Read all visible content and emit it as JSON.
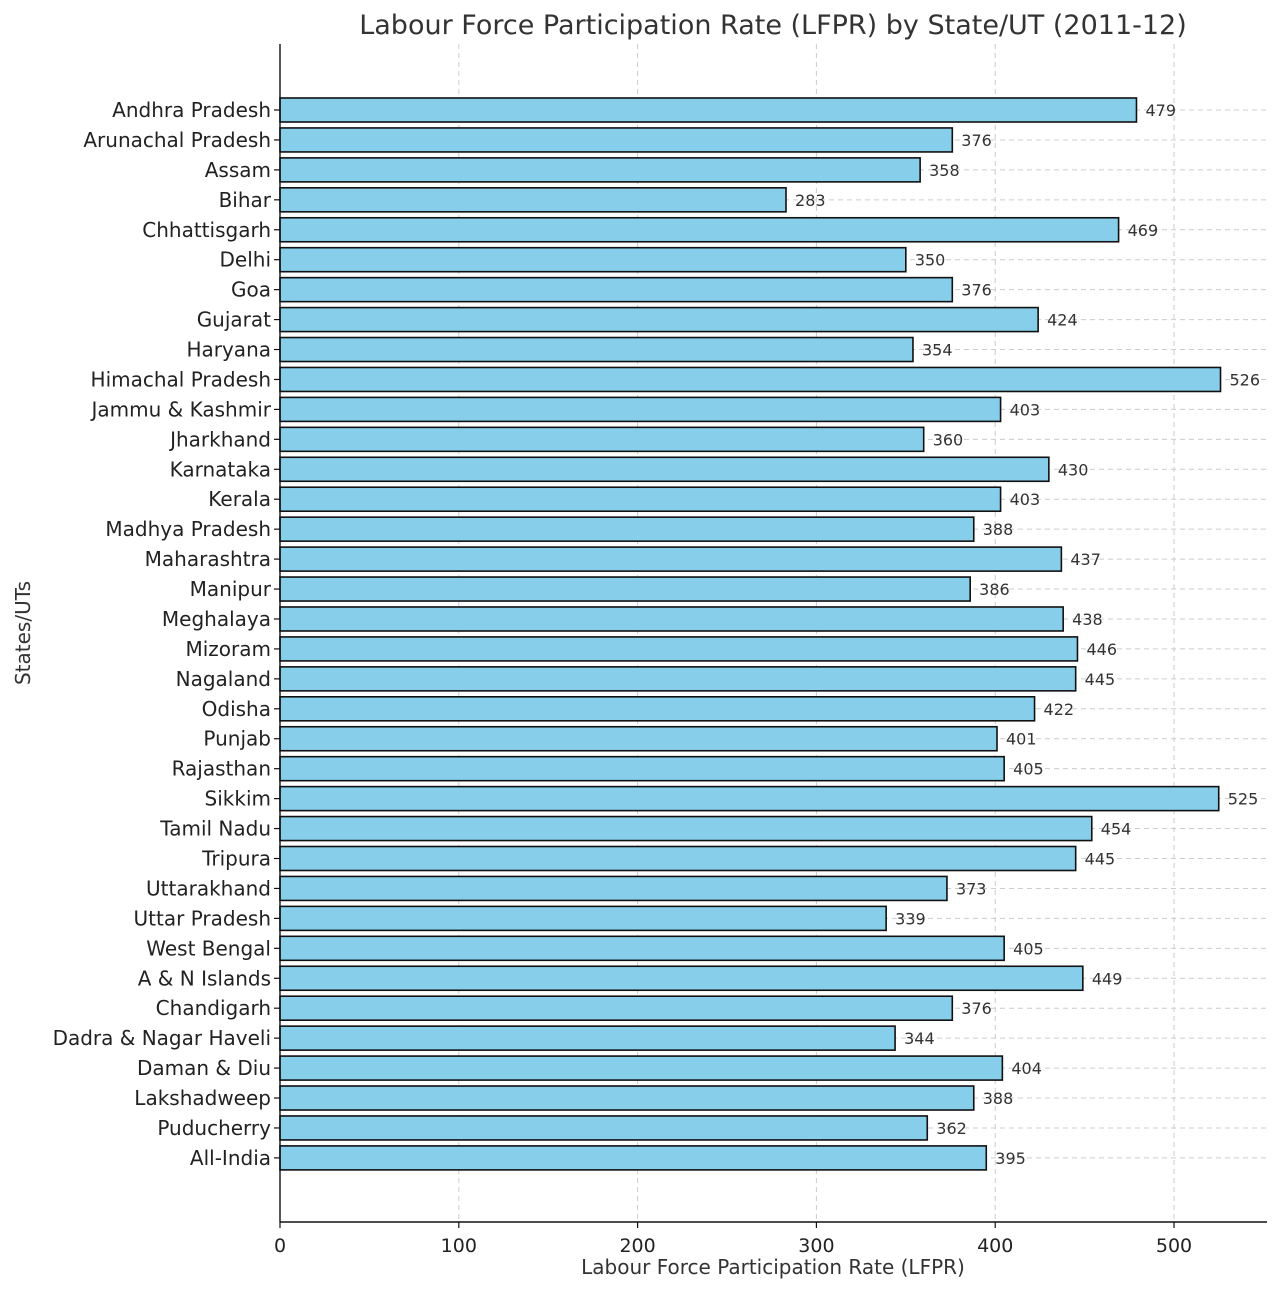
{
  "colors": {
    "bar": "#87ceeb",
    "bar_edge": "#111111",
    "grid": "#cccccc"
  },
  "chart_data": {
    "type": "bar",
    "orientation": "horizontal",
    "title": "Labour Force Participation Rate (LFPR) by State/UT (2011-12)",
    "xlabel": "Labour Force Participation Rate (LFPR)",
    "ylabel": "States/UTs",
    "xlim": [
      0,
      552
    ],
    "xticks": [
      0,
      100,
      200,
      300,
      400,
      500
    ],
    "grid": true,
    "categories": [
      "Andhra Pradesh",
      "Arunachal Pradesh",
      "Assam",
      "Bihar",
      "Chhattisgarh",
      "Delhi",
      "Goa",
      "Gujarat",
      "Haryana",
      "Himachal Pradesh",
      "Jammu & Kashmir",
      "Jharkhand",
      "Karnataka",
      "Kerala",
      "Madhya Pradesh",
      "Maharashtra",
      "Manipur",
      "Meghalaya",
      "Mizoram",
      "Nagaland",
      "Odisha",
      "Punjab",
      "Rajasthan",
      "Sikkim",
      "Tamil Nadu",
      "Tripura",
      "Uttarakhand",
      "Uttar Pradesh",
      "West Bengal",
      "A & N Islands",
      "Chandigarh",
      "Dadra & Nagar Haveli",
      "Daman & Diu",
      "Lakshadweep",
      "Puducherry",
      "All-India"
    ],
    "values": [
      479,
      376,
      358,
      283,
      469,
      350,
      376,
      424,
      354,
      526,
      403,
      360,
      430,
      403,
      388,
      437,
      386,
      438,
      446,
      445,
      422,
      401,
      405,
      525,
      454,
      445,
      373,
      339,
      405,
      449,
      376,
      344,
      404,
      388,
      362,
      395
    ]
  }
}
